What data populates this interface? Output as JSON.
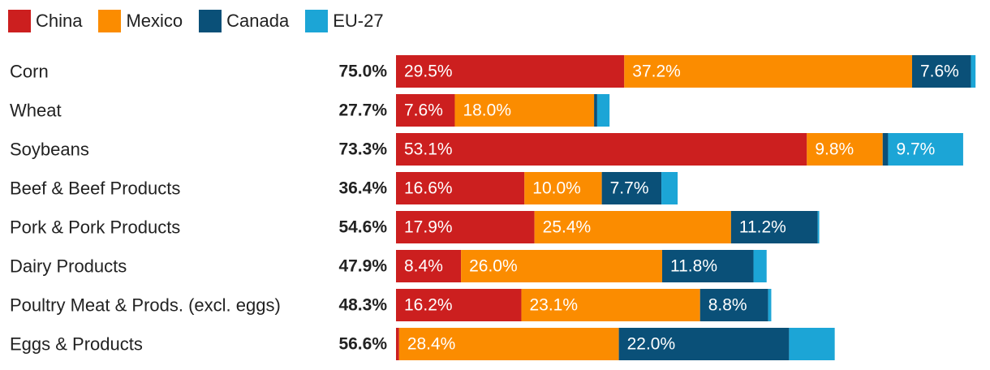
{
  "chart_data": {
    "type": "bar",
    "orientation": "horizontal",
    "stacked": true,
    "grid": false,
    "legend_position": "top-left",
    "series": [
      {
        "name": "China",
        "color": "#cc1f1f",
        "values": [
          29.5,
          7.6,
          53.1,
          16.6,
          17.9,
          8.4,
          16.2,
          0.4
        ]
      },
      {
        "name": "Mexico",
        "color": "#fb8c00",
        "values": [
          37.2,
          18.0,
          9.8,
          10.0,
          25.4,
          26.0,
          23.1,
          28.4
        ]
      },
      {
        "name": "Canada",
        "color": "#0a5078",
        "values": [
          7.6,
          0.4,
          0.7,
          7.7,
          11.2,
          11.8,
          8.8,
          22.0
        ]
      },
      {
        "name": "EU-27",
        "color": "#1ca5d6",
        "values": [
          0.6,
          1.6,
          9.7,
          2.1,
          0.2,
          1.7,
          0.4,
          5.9
        ]
      }
    ],
    "categories": [
      "Corn",
      "Wheat",
      "Soybeans",
      "Beef & Beef Products",
      "Pork & Pork Products",
      "Dairy Products",
      "Poultry Meat & Prods. (excl. eggs)",
      "Eggs & Products"
    ],
    "totals": [
      "75.0%",
      "27.7%",
      "73.3%",
      "36.4%",
      "54.6%",
      "47.9%",
      "48.3%",
      "56.6%"
    ],
    "data_labels": [
      [
        "29.5%",
        "37.2%",
        "7.6%",
        ""
      ],
      [
        "7.6%",
        "18.0%",
        "",
        ""
      ],
      [
        "53.1%",
        "9.8%",
        "",
        "9.7%"
      ],
      [
        "16.6%",
        "10.0%",
        "7.7%",
        ""
      ],
      [
        "17.9%",
        "25.4%",
        "11.2%",
        ""
      ],
      [
        "8.4%",
        "26.0%",
        "11.8%",
        ""
      ],
      [
        "16.2%",
        "23.1%",
        "8.8%",
        ""
      ],
      [
        "",
        "28.4%",
        "22.0%",
        ""
      ]
    ],
    "xlim": [
      0,
      75.3
    ],
    "title": "",
    "xlabel": "",
    "ylabel": ""
  }
}
